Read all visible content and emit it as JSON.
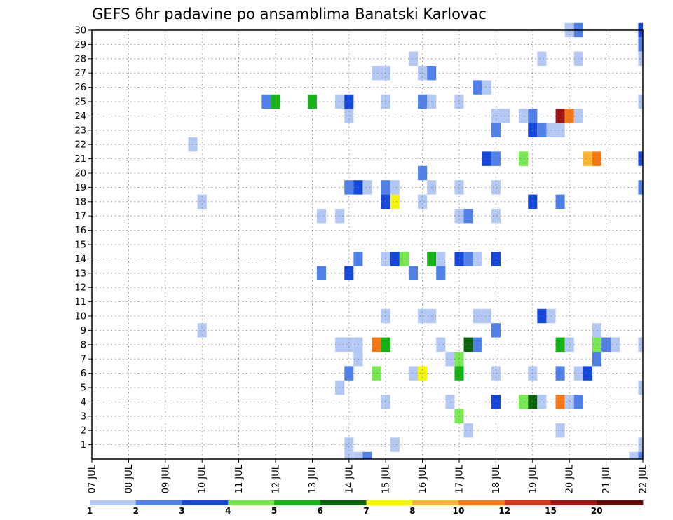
{
  "chart_data": {
    "type": "heatmap",
    "title": "GEFS 6hr padavine po ansamblima Banatski Karlovac",
    "xlabel": "",
    "ylabel": "",
    "x_ticks": [
      "07 JUL",
      "08 JUL",
      "09 JUL",
      "10 JUL",
      "11 JUL",
      "12 JUL",
      "13 JUL",
      "14 JUL",
      "15 JUL",
      "16 JUL",
      "17 JUL",
      "18 JUL",
      "19 JUL",
      "20 JUL",
      "21 JUL",
      "22 JUL"
    ],
    "y_ticks": [
      1,
      2,
      3,
      4,
      5,
      6,
      7,
      8,
      9,
      10,
      11,
      12,
      13,
      14,
      15,
      16,
      17,
      18,
      19,
      20,
      21,
      22,
      23,
      24,
      25,
      26,
      27,
      28,
      29,
      30
    ],
    "xlim_days": [
      0,
      15
    ],
    "ylim_members": [
      0,
      30
    ],
    "time_step_days": 0.25,
    "grid": true,
    "color_scale": {
      "thresholds": [
        "1",
        "2",
        "3",
        "4",
        "5",
        "6",
        "7",
        "8",
        "10",
        "12",
        "15",
        "20"
      ],
      "colors": [
        "#b4c8f5",
        "#5080ea",
        "#1446dc",
        "#78e850",
        "#14b414",
        "#0a640a",
        "#f5f50a",
        "#fab432",
        "#f57814",
        "#dc3214",
        "#a01414",
        "#640a0a"
      ]
    },
    "cells": [
      {
        "member": 30,
        "day": 13.0,
        "level": 1
      },
      {
        "member": 30,
        "day": 13.25,
        "level": 2
      },
      {
        "member": 30,
        "day": 15.0,
        "level": 3
      },
      {
        "member": 29,
        "day": 15.0,
        "level": 2
      },
      {
        "member": 28,
        "day": 8.75,
        "level": 1
      },
      {
        "member": 28,
        "day": 12.25,
        "level": 1
      },
      {
        "member": 28,
        "day": 13.25,
        "level": 1
      },
      {
        "member": 28,
        "day": 15.0,
        "level": 1
      },
      {
        "member": 27,
        "day": 7.75,
        "level": 1
      },
      {
        "member": 27,
        "day": 8.0,
        "level": 1
      },
      {
        "member": 27,
        "day": 9.0,
        "level": 1
      },
      {
        "member": 27,
        "day": 9.25,
        "level": 2
      },
      {
        "member": 26,
        "day": 10.5,
        "level": 2
      },
      {
        "member": 26,
        "day": 10.75,
        "level": 1
      },
      {
        "member": 25,
        "day": 4.75,
        "level": 2
      },
      {
        "member": 25,
        "day": 5.0,
        "level": 5
      },
      {
        "member": 25,
        "day": 6.0,
        "level": 5
      },
      {
        "member": 25,
        "day": 6.75,
        "level": 1
      },
      {
        "member": 25,
        "day": 7.0,
        "level": 3
      },
      {
        "member": 25,
        "day": 8.0,
        "level": 1
      },
      {
        "member": 25,
        "day": 9.0,
        "level": 2
      },
      {
        "member": 25,
        "day": 9.25,
        "level": 1
      },
      {
        "member": 25,
        "day": 10.0,
        "level": 1
      },
      {
        "member": 25,
        "day": 15.0,
        "level": 1
      },
      {
        "member": 24,
        "day": 7.0,
        "level": 1
      },
      {
        "member": 24,
        "day": 11.0,
        "level": 1
      },
      {
        "member": 24,
        "day": 11.25,
        "level": 1
      },
      {
        "member": 24,
        "day": 11.75,
        "level": 1
      },
      {
        "member": 24,
        "day": 12.0,
        "level": 2
      },
      {
        "member": 24,
        "day": 12.75,
        "level": 11
      },
      {
        "member": 24,
        "day": 13.0,
        "level": 9
      },
      {
        "member": 24,
        "day": 13.25,
        "level": 1
      },
      {
        "member": 23,
        "day": 11.0,
        "level": 2
      },
      {
        "member": 23,
        "day": 12.0,
        "level": 3
      },
      {
        "member": 23,
        "day": 12.25,
        "level": 2
      },
      {
        "member": 23,
        "day": 12.5,
        "level": 1
      },
      {
        "member": 23,
        "day": 12.75,
        "level": 1
      },
      {
        "member": 22,
        "day": 2.75,
        "level": 1
      },
      {
        "member": 21,
        "day": 10.75,
        "level": 3
      },
      {
        "member": 21,
        "day": 11.0,
        "level": 2
      },
      {
        "member": 21,
        "day": 11.75,
        "level": 4
      },
      {
        "member": 21,
        "day": 13.5,
        "level": 8
      },
      {
        "member": 21,
        "day": 13.75,
        "level": 9
      },
      {
        "member": 21,
        "day": 15.0,
        "level": 3
      },
      {
        "member": 20,
        "day": 9.0,
        "level": 2
      },
      {
        "member": 19,
        "day": 7.0,
        "level": 2
      },
      {
        "member": 19,
        "day": 7.25,
        "level": 3
      },
      {
        "member": 19,
        "day": 7.5,
        "level": 1
      },
      {
        "member": 19,
        "day": 8.0,
        "level": 2
      },
      {
        "member": 19,
        "day": 8.25,
        "level": 1
      },
      {
        "member": 19,
        "day": 9.25,
        "level": 1
      },
      {
        "member": 19,
        "day": 10.0,
        "level": 1
      },
      {
        "member": 19,
        "day": 11.0,
        "level": 1
      },
      {
        "member": 19,
        "day": 15.0,
        "level": 2
      },
      {
        "member": 18,
        "day": 3.0,
        "level": 1
      },
      {
        "member": 18,
        "day": 8.0,
        "level": 3
      },
      {
        "member": 18,
        "day": 8.25,
        "level": 7
      },
      {
        "member": 18,
        "day": 9.0,
        "level": 1
      },
      {
        "member": 18,
        "day": 12.0,
        "level": 3
      },
      {
        "member": 18,
        "day": 12.75,
        "level": 2
      },
      {
        "member": 17,
        "day": 6.25,
        "level": 1
      },
      {
        "member": 17,
        "day": 6.75,
        "level": 1
      },
      {
        "member": 17,
        "day": 10.0,
        "level": 1
      },
      {
        "member": 17,
        "day": 10.25,
        "level": 2
      },
      {
        "member": 17,
        "day": 11.0,
        "level": 1
      },
      {
        "member": 14,
        "day": 7.25,
        "level": 2
      },
      {
        "member": 14,
        "day": 8.0,
        "level": 1
      },
      {
        "member": 14,
        "day": 8.25,
        "level": 3
      },
      {
        "member": 14,
        "day": 8.5,
        "level": 4
      },
      {
        "member": 14,
        "day": 9.25,
        "level": 5
      },
      {
        "member": 14,
        "day": 9.5,
        "level": 1
      },
      {
        "member": 14,
        "day": 10.0,
        "level": 3
      },
      {
        "member": 14,
        "day": 10.25,
        "level": 2
      },
      {
        "member": 14,
        "day": 10.5,
        "level": 1
      },
      {
        "member": 14,
        "day": 11.0,
        "level": 3
      },
      {
        "member": 13,
        "day": 6.25,
        "level": 2
      },
      {
        "member": 13,
        "day": 7.0,
        "level": 3
      },
      {
        "member": 13,
        "day": 8.75,
        "level": 2
      },
      {
        "member": 13,
        "day": 9.5,
        "level": 2
      },
      {
        "member": 10,
        "day": 8.0,
        "level": 1
      },
      {
        "member": 10,
        "day": 9.0,
        "level": 1
      },
      {
        "member": 10,
        "day": 9.25,
        "level": 1
      },
      {
        "member": 10,
        "day": 10.5,
        "level": 1
      },
      {
        "member": 10,
        "day": 10.75,
        "level": 1
      },
      {
        "member": 10,
        "day": 12.25,
        "level": 3
      },
      {
        "member": 10,
        "day": 12.5,
        "level": 1
      },
      {
        "member": 9,
        "day": 3.0,
        "level": 1
      },
      {
        "member": 9,
        "day": 11.0,
        "level": 2
      },
      {
        "member": 9,
        "day": 13.75,
        "level": 1
      },
      {
        "member": 8,
        "day": 6.75,
        "level": 1
      },
      {
        "member": 8,
        "day": 7.0,
        "level": 1
      },
      {
        "member": 8,
        "day": 7.25,
        "level": 1
      },
      {
        "member": 8,
        "day": 7.75,
        "level": 9
      },
      {
        "member": 8,
        "day": 8.0,
        "level": 5
      },
      {
        "member": 8,
        "day": 9.5,
        "level": 1
      },
      {
        "member": 8,
        "day": 10.25,
        "level": 6
      },
      {
        "member": 8,
        "day": 10.5,
        "level": 2
      },
      {
        "member": 8,
        "day": 12.75,
        "level": 5
      },
      {
        "member": 8,
        "day": 13.0,
        "level": 1
      },
      {
        "member": 8,
        "day": 13.75,
        "level": 4
      },
      {
        "member": 8,
        "day": 14.0,
        "level": 2
      },
      {
        "member": 8,
        "day": 14.25,
        "level": 1
      },
      {
        "member": 8,
        "day": 15.0,
        "level": 1
      },
      {
        "member": 7,
        "day": 7.25,
        "level": 1
      },
      {
        "member": 7,
        "day": 9.75,
        "level": 1
      },
      {
        "member": 7,
        "day": 10.0,
        "level": 4
      },
      {
        "member": 7,
        "day": 13.75,
        "level": 2
      },
      {
        "member": 6,
        "day": 7.0,
        "level": 2
      },
      {
        "member": 6,
        "day": 7.75,
        "level": 4
      },
      {
        "member": 6,
        "day": 8.75,
        "level": 1
      },
      {
        "member": 6,
        "day": 9.0,
        "level": 7
      },
      {
        "member": 6,
        "day": 10.0,
        "level": 5
      },
      {
        "member": 6,
        "day": 11.0,
        "level": 1
      },
      {
        "member": 6,
        "day": 12.0,
        "level": 1
      },
      {
        "member": 6,
        "day": 12.75,
        "level": 2
      },
      {
        "member": 6,
        "day": 13.25,
        "level": 1
      },
      {
        "member": 6,
        "day": 13.5,
        "level": 3
      },
      {
        "member": 5,
        "day": 6.75,
        "level": 1
      },
      {
        "member": 5,
        "day": 15.0,
        "level": 1
      },
      {
        "member": 4,
        "day": 8.0,
        "level": 1
      },
      {
        "member": 4,
        "day": 9.75,
        "level": 1
      },
      {
        "member": 4,
        "day": 11.0,
        "level": 3
      },
      {
        "member": 4,
        "day": 11.75,
        "level": 4
      },
      {
        "member": 4,
        "day": 12.0,
        "level": 6
      },
      {
        "member": 4,
        "day": 12.25,
        "level": 1
      },
      {
        "member": 4,
        "day": 12.75,
        "level": 9
      },
      {
        "member": 4,
        "day": 13.0,
        "level": 1
      },
      {
        "member": 4,
        "day": 13.25,
        "level": 2
      },
      {
        "member": 3,
        "day": 10.0,
        "level": 4
      },
      {
        "member": 2,
        "day": 10.25,
        "level": 1
      },
      {
        "member": 2,
        "day": 12.75,
        "level": 1
      },
      {
        "member": 1,
        "day": 7.0,
        "level": 1
      },
      {
        "member": 1,
        "day": 8.25,
        "level": 1
      },
      {
        "member": 1,
        "day": 15.0,
        "level": 1
      },
      {
        "member": 0,
        "day": 7.0,
        "level": 1
      },
      {
        "member": 0,
        "day": 7.25,
        "level": 1
      },
      {
        "member": 0,
        "day": 7.5,
        "level": 2
      },
      {
        "member": 0,
        "day": 14.75,
        "level": 1
      },
      {
        "member": 0,
        "day": 15.0,
        "level": 2
      }
    ]
  }
}
